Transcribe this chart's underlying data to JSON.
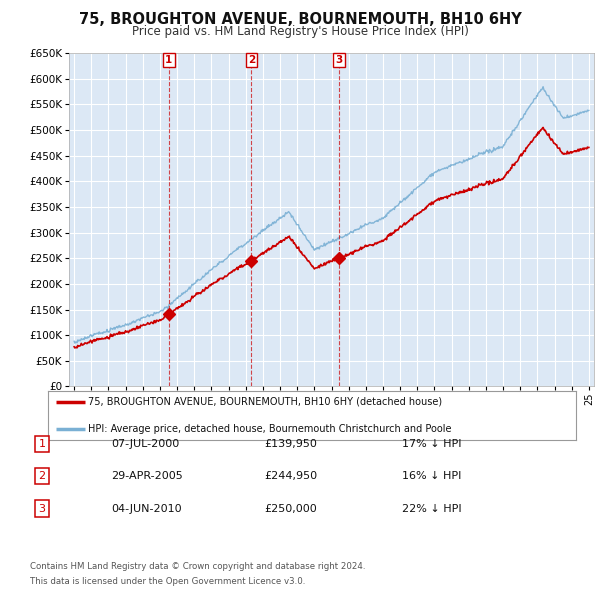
{
  "title": "75, BROUGHTON AVENUE, BOURNEMOUTH, BH10 6HY",
  "subtitle": "Price paid vs. HM Land Registry's House Price Index (HPI)",
  "background_color": "#ffffff",
  "plot_bg_color": "#dce8f5",
  "grid_color": "#ffffff",
  "sale_color": "#cc0000",
  "hpi_color": "#7ab0d4",
  "sales": [
    {
      "label": "1",
      "year": 2000.52,
      "price": 139950
    },
    {
      "label": "2",
      "year": 2005.33,
      "price": 244950
    },
    {
      "label": "3",
      "year": 2010.43,
      "price": 250000
    }
  ],
  "sale_table": [
    {
      "num": "1",
      "date": "07-JUL-2000",
      "price": "£139,950",
      "pct": "17% ↓ HPI"
    },
    {
      "num": "2",
      "date": "29-APR-2005",
      "price": "£244,950",
      "pct": "16% ↓ HPI"
    },
    {
      "num": "3",
      "date": "04-JUN-2010",
      "price": "£250,000",
      "pct": "22% ↓ HPI"
    }
  ],
  "legend_entries": [
    "75, BROUGHTON AVENUE, BOURNEMOUTH, BH10 6HY (detached house)",
    "HPI: Average price, detached house, Bournemouth Christchurch and Poole"
  ],
  "footer": [
    "Contains HM Land Registry data © Crown copyright and database right 2024.",
    "This data is licensed under the Open Government Licence v3.0."
  ],
  "ylim": [
    0,
    650000
  ],
  "yticks": [
    0,
    50000,
    100000,
    150000,
    200000,
    250000,
    300000,
    350000,
    400000,
    450000,
    500000,
    550000,
    600000,
    650000
  ],
  "xlim_start": 1994.7,
  "xlim_end": 2025.3
}
